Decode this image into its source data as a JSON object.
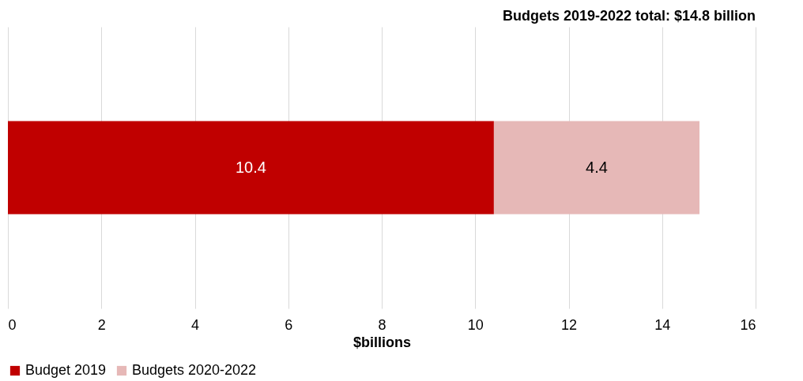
{
  "chart_data": {
    "type": "bar",
    "orientation": "horizontal",
    "stacked": true,
    "title": "Budgets 2019-2022 total: $14.8 billion",
    "xlabel": "$billions",
    "categories": [
      null
    ],
    "series": [
      {
        "name": "Budget 2019",
        "color": "#c00000",
        "values": [
          10.4
        ]
      },
      {
        "name": "Budgets 2020-2022",
        "color": "#e6b8b7",
        "values": [
          4.4
        ]
      }
    ],
    "xlim": [
      0,
      16
    ],
    "xticks": [
      0,
      2,
      4,
      6,
      8,
      10,
      12,
      14,
      16
    ],
    "grid": "x",
    "legend": "bottom",
    "data_labels": true
  }
}
